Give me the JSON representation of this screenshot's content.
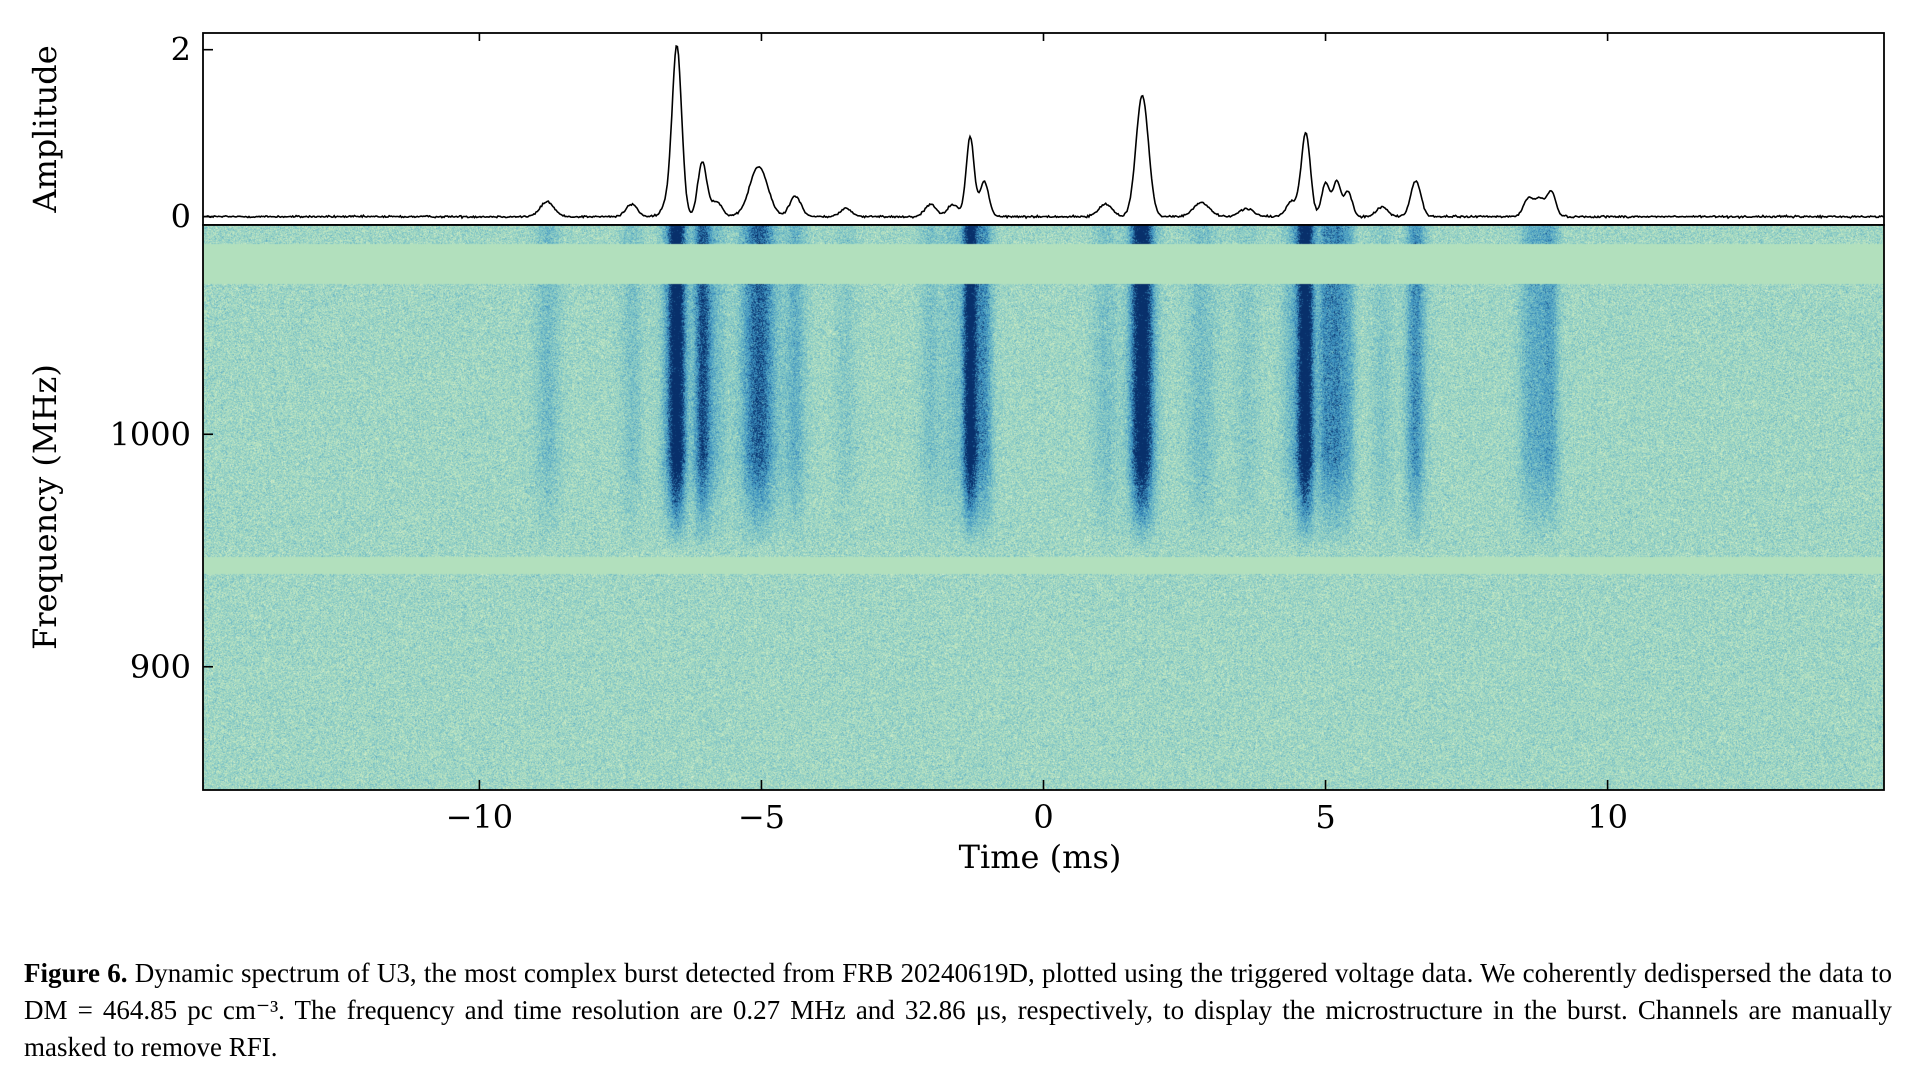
{
  "chart_data": [
    {
      "type": "line",
      "panel": "time-series",
      "ylabel": "Amplitude",
      "xlabel": "",
      "xlim": [
        -14.9,
        14.9
      ],
      "ylim": [
        -0.1,
        2.2
      ],
      "yticks": [
        0,
        2
      ],
      "ytick_labels": [
        "0",
        "2"
      ],
      "peaks": [
        {
          "t": -8.8,
          "amp": 0.18,
          "w": 0.12
        },
        {
          "t": -7.3,
          "amp": 0.15,
          "w": 0.1
        },
        {
          "t": -6.7,
          "amp": 0.12,
          "w": 0.08
        },
        {
          "t": -6.5,
          "amp": 2.05,
          "w": 0.085
        },
        {
          "t": -6.05,
          "amp": 0.65,
          "w": 0.08
        },
        {
          "t": -5.8,
          "amp": 0.18,
          "w": 0.1
        },
        {
          "t": -5.05,
          "amp": 0.6,
          "w": 0.16
        },
        {
          "t": -4.4,
          "amp": 0.25,
          "w": 0.1
        },
        {
          "t": -3.5,
          "amp": 0.1,
          "w": 0.1
        },
        {
          "t": -2.0,
          "amp": 0.15,
          "w": 0.1
        },
        {
          "t": -1.6,
          "amp": 0.15,
          "w": 0.1
        },
        {
          "t": -1.3,
          "amp": 0.95,
          "w": 0.07
        },
        {
          "t": -1.05,
          "amp": 0.42,
          "w": 0.08
        },
        {
          "t": 1.1,
          "amp": 0.15,
          "w": 0.12
        },
        {
          "t": 1.75,
          "amp": 1.45,
          "w": 0.11
        },
        {
          "t": 2.8,
          "amp": 0.17,
          "w": 0.14
        },
        {
          "t": 3.6,
          "amp": 0.1,
          "w": 0.12
        },
        {
          "t": 4.4,
          "amp": 0.18,
          "w": 0.1
        },
        {
          "t": 4.65,
          "amp": 1.0,
          "w": 0.08
        },
        {
          "t": 5.0,
          "amp": 0.4,
          "w": 0.07
        },
        {
          "t": 5.2,
          "amp": 0.42,
          "w": 0.07
        },
        {
          "t": 5.4,
          "amp": 0.3,
          "w": 0.07
        },
        {
          "t": 6.0,
          "amp": 0.12,
          "w": 0.1
        },
        {
          "t": 6.6,
          "amp": 0.43,
          "w": 0.09
        },
        {
          "t": 8.6,
          "amp": 0.22,
          "w": 0.09
        },
        {
          "t": 8.8,
          "amp": 0.2,
          "w": 0.08
        },
        {
          "t": 9.0,
          "amp": 0.3,
          "w": 0.08
        }
      ]
    },
    {
      "type": "heatmap",
      "panel": "dynamic-spectrum",
      "xlabel": "Time (ms)",
      "ylabel": "Frequency (MHz)",
      "xlim": [
        -14.9,
        14.9
      ],
      "ylim": [
        847,
        1090
      ],
      "xticks": [
        -10,
        -5,
        0,
        5,
        10
      ],
      "xtick_labels": [
        "−10",
        "−5",
        "0",
        "5",
        "10"
      ],
      "yticks": [
        900,
        1000
      ],
      "ytick_labels": [
        "900",
        "1000"
      ],
      "masked_channels_mhz": [
        [
          1065,
          1082
        ],
        [
          940,
          947
        ]
      ],
      "burst_freq_range_mhz": [
        950,
        1090
      ],
      "colormap": [
        "#f2f9e6",
        "#c4e8c0",
        "#7dc4c6",
        "#3a90c0",
        "#08306b"
      ],
      "mask_color": "#b2e0bd"
    }
  ],
  "caption": {
    "label": "Figure 6.",
    "text": "Dynamic spectrum of U3, the most complex burst detected from FRB 20240619D, plotted using the triggered voltage data. We coherently dedispersed the data to DM = 464.85 pc cm⁻³. The frequency and time resolution are 0.27 MHz and 32.86 μs, respectively, to display the microstructure in the burst. Channels are manually masked to remove RFI."
  }
}
